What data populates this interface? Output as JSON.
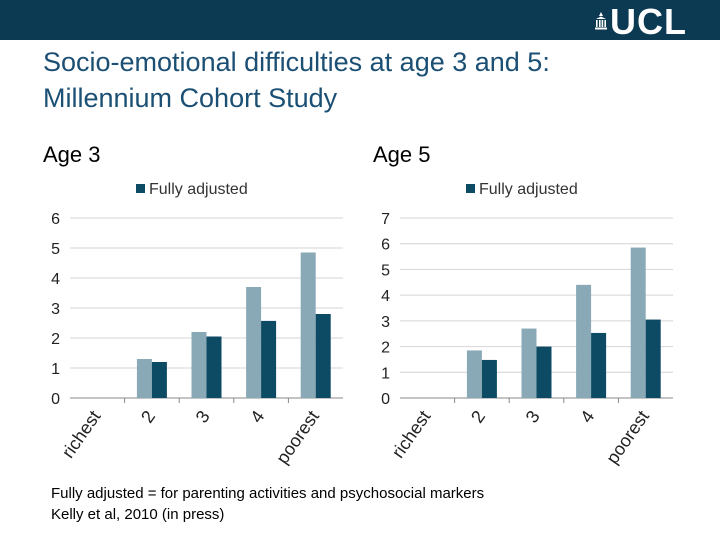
{
  "header": {
    "logo_text": "UCL"
  },
  "title_line1": "Socio-emotional difficulties at age 3 and 5:",
  "title_line2": "Millennium Cohort Study",
  "left_label": "Age 3",
  "right_label": "Age 5",
  "footer_line1": "Fully adjusted = for parenting activities and psychosocial markers",
  "footer_line2": "Kelly et al, 2010 (in press)",
  "colors": {
    "series_light": "#8aa9b7",
    "series_dark": "#0d4a63",
    "header_bg": "#0b3a52",
    "title": "#1b4f73"
  },
  "chart_data": [
    {
      "type": "bar",
      "categories": [
        "richest",
        "2",
        "3",
        "4",
        "poorest"
      ],
      "series": [
        {
          "name": "",
          "color": "#8aa9b7",
          "values": [
            0,
            1.3,
            2.2,
            3.7,
            4.85
          ]
        },
        {
          "name": "Fully adjusted",
          "color": "#0d4a63",
          "values": [
            0,
            1.2,
            2.05,
            2.57,
            2.8
          ]
        }
      ],
      "legend": {
        "label": "Fully adjusted",
        "placement": "top"
      },
      "ylim": [
        0,
        6
      ],
      "yticks": [
        0,
        1,
        2,
        3,
        4,
        5,
        6
      ],
      "grid": true
    },
    {
      "type": "bar",
      "categories": [
        "richest",
        "2",
        "3",
        "4",
        "poorest"
      ],
      "series": [
        {
          "name": "",
          "color": "#8aa9b7",
          "values": [
            0,
            1.85,
            2.7,
            4.4,
            5.85
          ]
        },
        {
          "name": "Fully adjusted",
          "color": "#0d4a63",
          "values": [
            0,
            1.48,
            2.0,
            2.53,
            3.05
          ]
        }
      ],
      "legend": {
        "label": "Fully adjusted",
        "placement": "top"
      },
      "ylim": [
        0,
        7
      ],
      "yticks": [
        0,
        1,
        2,
        3,
        4,
        5,
        6,
        7
      ],
      "grid": true
    }
  ]
}
